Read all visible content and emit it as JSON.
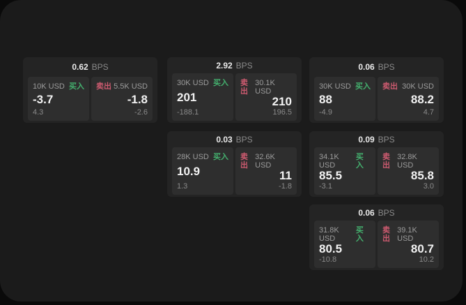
{
  "colors": {
    "background": "#0a0a0a",
    "surface": "#1b1b1b",
    "card": "#242424",
    "tile": "#2e2e2e",
    "buy_green": "#44b06e",
    "sell_red": "#cc5a6f",
    "text_primary": "#f2f2f2",
    "text_secondary": "#9c9c9c",
    "text_muted": "#8a8a8a"
  },
  "labels": {
    "bps_unit": "BPS",
    "buy": "买入",
    "sell": "卖出"
  },
  "cards": [
    {
      "row": 1,
      "col": 1,
      "bps": "0.62",
      "buy": {
        "amount": "10K USD",
        "price": "-3.7",
        "change": "4.3"
      },
      "sell": {
        "amount": "5.5K USD",
        "price": "-1.8",
        "change": "-2.6"
      }
    },
    {
      "row": 1,
      "col": 2,
      "bps": "2.92",
      "buy": {
        "amount": "30K USD",
        "price": "201",
        "change": "-188.1"
      },
      "sell": {
        "amount": "30.1K USD",
        "price": "210",
        "change": "196.5"
      }
    },
    {
      "row": 1,
      "col": 3,
      "bps": "0.06",
      "buy": {
        "amount": "30K USD",
        "price": "88",
        "change": "-4.9"
      },
      "sell": {
        "amount": "30K USD",
        "price": "88.2",
        "change": "4.7"
      }
    },
    {
      "row": 2,
      "col": 2,
      "bps": "0.03",
      "buy": {
        "amount": "28K USD",
        "price": "10.9",
        "change": "1.3"
      },
      "sell": {
        "amount": "32.6K USD",
        "price": "11",
        "change": "-1.8"
      }
    },
    {
      "row": 2,
      "col": 3,
      "bps": "0.09",
      "buy": {
        "amount": "34.1K USD",
        "price": "85.5",
        "change": "-3.1"
      },
      "sell": {
        "amount": "32.8K USD",
        "price": "85.8",
        "change": "3.0"
      }
    },
    {
      "row": 3,
      "col": 3,
      "bps": "0.06",
      "buy": {
        "amount": "31.8K USD",
        "price": "80.5",
        "change": "-10.8"
      },
      "sell": {
        "amount": "39.1K USD",
        "price": "80.7",
        "change": "10.2"
      }
    }
  ]
}
